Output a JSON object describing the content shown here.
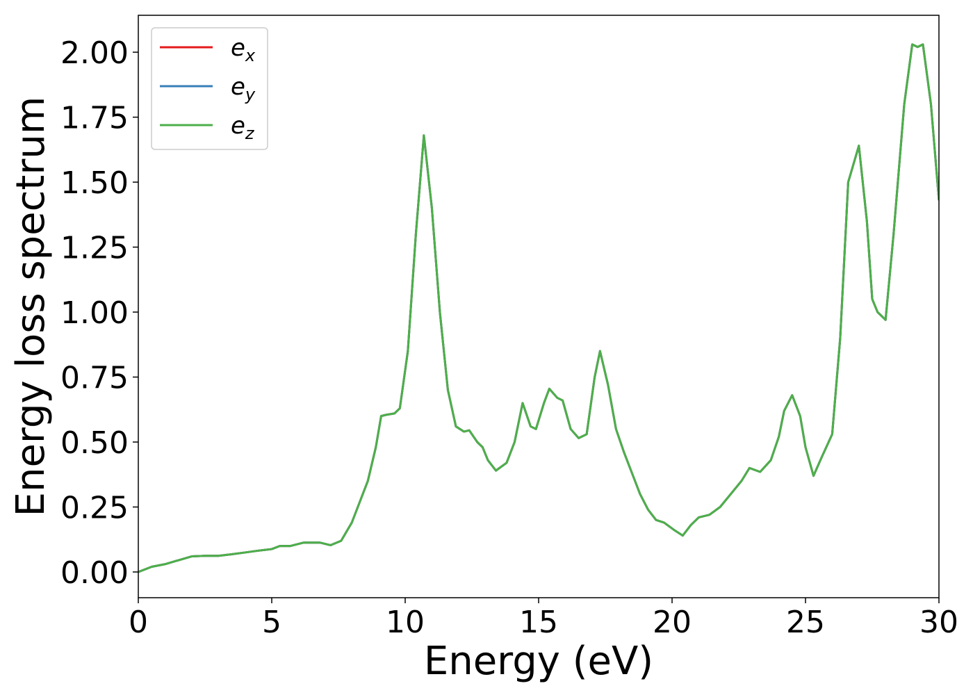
{
  "chart_data": {
    "type": "line",
    "xlabel": "Energy (eV)",
    "ylabel": "Energy loss spectrum",
    "xlim": [
      0,
      30
    ],
    "ylim": [
      -0.099,
      2.142
    ],
    "xticks": [
      0,
      5,
      10,
      15,
      20,
      25,
      30
    ],
    "yticks": [
      {
        "value": 0,
        "label": "0.00"
      },
      {
        "value": 0.25,
        "label": "0.25"
      },
      {
        "value": 0.5,
        "label": "0.50"
      },
      {
        "value": 0.75,
        "label": "0.75"
      },
      {
        "value": 1,
        "label": "1.00"
      },
      {
        "value": 1.25,
        "label": "1.25"
      },
      {
        "value": 1.5,
        "label": "1.50"
      },
      {
        "value": 1.75,
        "label": "1.75"
      },
      {
        "value": 2,
        "label": "2.00"
      }
    ],
    "legend": "upper left",
    "x": [
      0,
      0.5,
      1,
      1.5,
      2,
      2.5,
      3,
      3.5,
      4,
      4.5,
      5,
      5.3,
      5.7,
      6.2,
      6.8,
      7.2,
      7.6,
      8,
      8.3,
      8.6,
      8.9,
      9.1,
      9.3,
      9.6,
      9.8,
      10.1,
      10.4,
      10.7,
      11,
      11.3,
      11.6,
      11.9,
      12.2,
      12.4,
      12.7,
      12.9,
      13.1,
      13.4,
      13.8,
      14.1,
      14.4,
      14.7,
      14.9,
      15.2,
      15.4,
      15.7,
      15.9,
      16.2,
      16.5,
      16.8,
      17.1,
      17.3,
      17.6,
      17.9,
      18.2,
      18.5,
      18.8,
      19.1,
      19.4,
      19.7,
      20.1,
      20.4,
      20.7,
      21,
      21.4,
      21.8,
      22.2,
      22.6,
      22.9,
      23.3,
      23.7,
      24,
      24.2,
      24.5,
      24.8,
      25,
      25.3,
      25.6,
      26,
      26.3,
      26.6,
      27,
      27.3,
      27.5,
      27.7,
      28,
      28.3,
      28.7,
      29,
      29.2,
      29.4,
      29.7,
      30
    ],
    "series": [
      {
        "name": "e_x",
        "color": "#e41a1c",
        "values": [
          0,
          0.02,
          0.03,
          0.045,
          0.06,
          0.062,
          0.062,
          0.068,
          0.075,
          0.082,
          0.088,
          0.1,
          0.1,
          0.113,
          0.113,
          0.103,
          0.12,
          0.19,
          0.27,
          0.35,
          0.48,
          0.6,
          0.605,
          0.61,
          0.63,
          0.85,
          1.3,
          1.68,
          1.4,
          1.0,
          0.7,
          0.56,
          0.54,
          0.545,
          0.5,
          0.48,
          0.43,
          0.39,
          0.42,
          0.5,
          0.65,
          0.56,
          0.55,
          0.65,
          0.705,
          0.67,
          0.66,
          0.55,
          0.515,
          0.53,
          0.75,
          0.85,
          0.72,
          0.55,
          0.46,
          0.38,
          0.3,
          0.24,
          0.2,
          0.19,
          0.16,
          0.14,
          0.18,
          0.21,
          0.22,
          0.25,
          0.3,
          0.35,
          0.4,
          0.385,
          0.43,
          0.52,
          0.62,
          0.68,
          0.6,
          0.48,
          0.37,
          0.44,
          0.53,
          0.9,
          1.5,
          1.64,
          1.35,
          1.05,
          1.0,
          0.97,
          1.3,
          1.8,
          2.03,
          2.02,
          2.03,
          1.8,
          1.43
        ]
      },
      {
        "name": "e_y",
        "color": "#377eb8",
        "values": [
          0,
          0.02,
          0.03,
          0.045,
          0.06,
          0.062,
          0.062,
          0.068,
          0.075,
          0.082,
          0.088,
          0.1,
          0.1,
          0.113,
          0.113,
          0.103,
          0.12,
          0.19,
          0.27,
          0.35,
          0.48,
          0.6,
          0.605,
          0.61,
          0.63,
          0.85,
          1.3,
          1.68,
          1.4,
          1.0,
          0.7,
          0.56,
          0.54,
          0.545,
          0.5,
          0.48,
          0.43,
          0.39,
          0.42,
          0.5,
          0.65,
          0.56,
          0.55,
          0.65,
          0.705,
          0.67,
          0.66,
          0.55,
          0.515,
          0.53,
          0.75,
          0.85,
          0.72,
          0.55,
          0.46,
          0.38,
          0.3,
          0.24,
          0.2,
          0.19,
          0.16,
          0.14,
          0.18,
          0.21,
          0.22,
          0.25,
          0.3,
          0.35,
          0.4,
          0.385,
          0.43,
          0.52,
          0.62,
          0.68,
          0.6,
          0.48,
          0.37,
          0.44,
          0.53,
          0.9,
          1.5,
          1.64,
          1.35,
          1.05,
          1.0,
          0.97,
          1.3,
          1.8,
          2.03,
          2.02,
          2.03,
          1.8,
          1.43
        ]
      },
      {
        "name": "e_z",
        "color": "#4daf4a",
        "values": [
          0,
          0.02,
          0.03,
          0.045,
          0.06,
          0.062,
          0.062,
          0.068,
          0.075,
          0.082,
          0.088,
          0.1,
          0.1,
          0.113,
          0.113,
          0.103,
          0.12,
          0.19,
          0.27,
          0.35,
          0.48,
          0.6,
          0.605,
          0.61,
          0.63,
          0.85,
          1.3,
          1.68,
          1.4,
          1.0,
          0.7,
          0.56,
          0.54,
          0.545,
          0.5,
          0.48,
          0.43,
          0.39,
          0.42,
          0.5,
          0.65,
          0.56,
          0.55,
          0.65,
          0.705,
          0.67,
          0.66,
          0.55,
          0.515,
          0.53,
          0.75,
          0.85,
          0.72,
          0.55,
          0.46,
          0.38,
          0.3,
          0.24,
          0.2,
          0.19,
          0.16,
          0.14,
          0.18,
          0.21,
          0.22,
          0.25,
          0.3,
          0.35,
          0.4,
          0.385,
          0.43,
          0.52,
          0.62,
          0.68,
          0.6,
          0.48,
          0.37,
          0.44,
          0.53,
          0.9,
          1.5,
          1.64,
          1.35,
          1.05,
          1.0,
          0.97,
          1.3,
          1.8,
          2.03,
          2.02,
          2.03,
          1.8,
          1.43
        ]
      }
    ]
  }
}
